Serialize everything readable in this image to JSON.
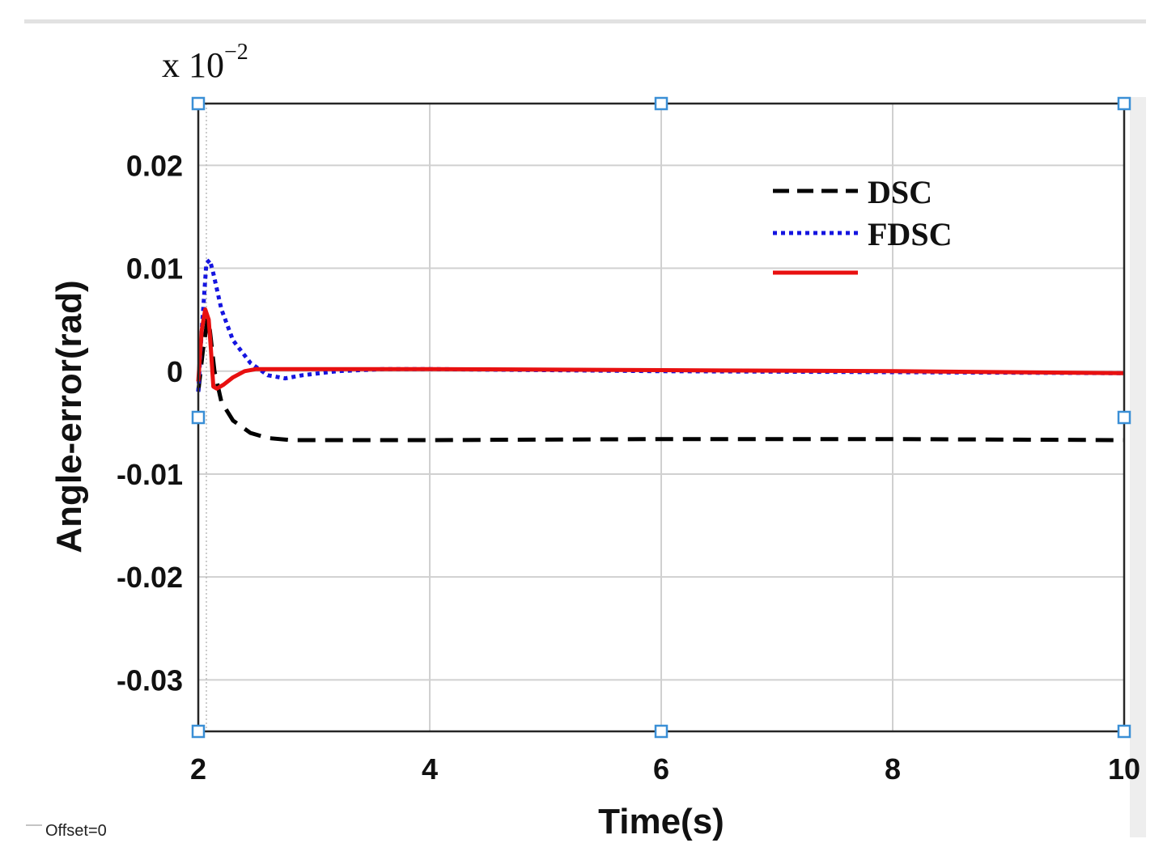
{
  "chart_data": {
    "type": "line",
    "exponent_label": "x 10",
    "exponent_power": "−2",
    "xlabel": "Time(s)",
    "ylabel": "Angle-error(rad)",
    "xlim": [
      2,
      10
    ],
    "ylim": [
      -0.035,
      0.026
    ],
    "xticks": [
      2,
      4,
      6,
      8,
      10
    ],
    "xtick_labels": [
      "2",
      "4",
      "6",
      "8",
      "10"
    ],
    "yticks": [
      0.02,
      0.01,
      0,
      -0.01,
      -0.02,
      -0.03
    ],
    "ytick_labels": [
      "0.02",
      "0.01",
      "0",
      "-0.01",
      "-0.02",
      "-0.03"
    ],
    "grid": true,
    "legend_position": "top-right",
    "offset_label": "Offset=0",
    "series": [
      {
        "name": "DSC",
        "color": "#000000",
        "style": "dashed",
        "x": [
          2.0,
          2.04,
          2.08,
          2.1,
          2.14,
          2.2,
          2.3,
          2.45,
          2.6,
          2.8,
          3.0,
          4.0,
          6.0,
          8.0,
          10.0
        ],
        "y": [
          -0.002,
          0.002,
          0.005,
          0.004,
          0.0,
          -0.003,
          -0.0048,
          -0.006,
          -0.0065,
          -0.0067,
          -0.0067,
          -0.0067,
          -0.0066,
          -0.0066,
          -0.0067
        ]
      },
      {
        "name": "FDSC",
        "color": "#1515e0",
        "style": "dotted",
        "x": [
          2.0,
          2.03,
          2.07,
          2.1,
          2.13,
          2.2,
          2.3,
          2.45,
          2.6,
          2.75,
          2.9,
          3.2,
          3.6,
          4.0,
          6.0,
          8.0,
          10.0
        ],
        "y": [
          -0.002,
          0.004,
          0.0105,
          0.0108,
          0.0095,
          0.006,
          0.003,
          0.0008,
          -0.0004,
          -0.0007,
          -0.0004,
          0.0,
          0.0002,
          0.0002,
          0.0,
          -0.0001,
          -0.0002
        ]
      },
      {
        "name": "",
        "color": "#e81010",
        "style": "solid",
        "x": [
          2.0,
          2.03,
          2.06,
          2.09,
          2.11,
          2.13,
          2.16,
          2.22,
          2.3,
          2.4,
          2.5,
          3.0,
          4.0,
          6.0,
          8.0,
          10.0
        ],
        "y": [
          -0.001,
          0.004,
          0.006,
          0.005,
          0.002,
          -0.0015,
          -0.0017,
          -0.0013,
          -0.0006,
          0.0,
          0.0002,
          0.0002,
          0.0002,
          0.0001,
          0.0,
          -0.0002
        ]
      }
    ]
  }
}
